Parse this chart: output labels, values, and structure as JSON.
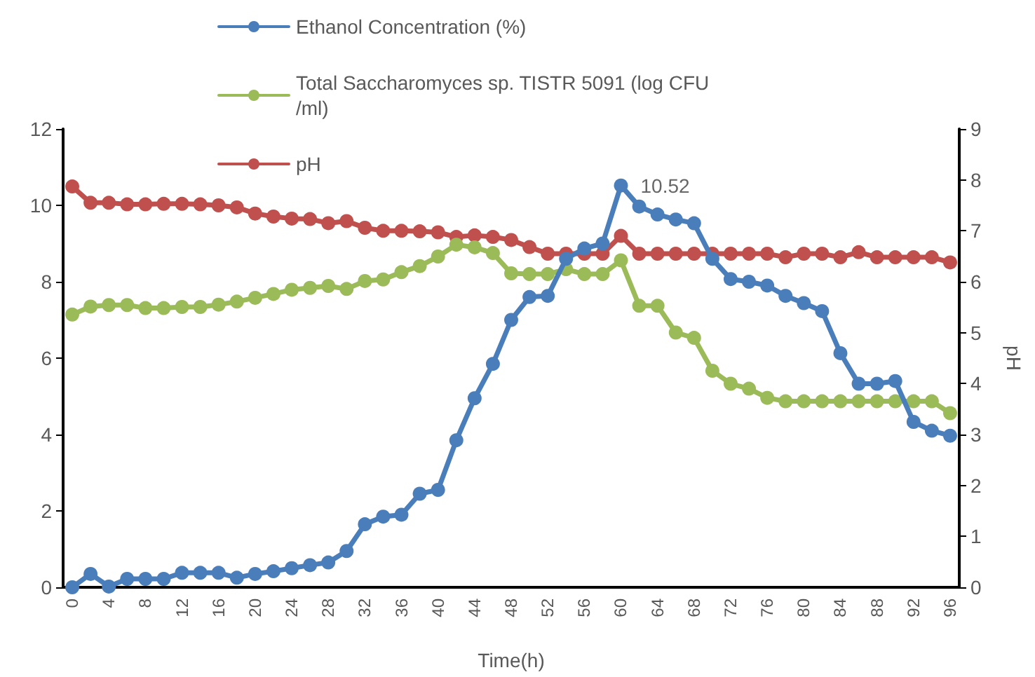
{
  "chart_data": {
    "type": "line",
    "xlabel": "Time(h)",
    "y2label": "pH",
    "categories": [
      "0",
      null,
      "4",
      null,
      "8",
      null,
      "12",
      null,
      "16",
      null,
      "20",
      null,
      "24",
      null,
      "28",
      null,
      "32",
      null,
      "36",
      null,
      "40",
      null,
      "44",
      null,
      "48",
      null,
      "52",
      null,
      "56",
      null,
      "60",
      null,
      "64",
      null,
      "68",
      null,
      "72",
      null,
      "76",
      null,
      "80",
      null,
      "84",
      null,
      "88",
      null,
      "92",
      null,
      "96"
    ],
    "series": [
      {
        "name": "Ethanol Concentration (%)",
        "color": "#4a7ebb",
        "values": [
          0,
          0.35,
          0.02,
          0.22,
          0.22,
          0.22,
          0.38,
          0.38,
          0.38,
          0.25,
          0.35,
          0.42,
          0.5,
          0.58,
          0.65,
          0.95,
          1.65,
          1.85,
          1.9,
          2.45,
          2.55,
          3.85,
          4.95,
          5.85,
          7.0,
          7.6,
          7.63,
          8.6,
          8.87,
          9.0,
          10.52,
          9.97,
          9.76,
          9.63,
          9.53,
          8.6,
          8.07,
          8.0,
          7.9,
          7.63,
          7.44,
          7.23,
          6.13,
          5.33,
          5.33,
          5.4,
          4.33,
          4.1,
          3.97
        ]
      },
      {
        "name": "Total Saccharomyces sp. TISTR 5091 (log CFU/ml)",
        "color": "#9bbb59",
        "values": [
          7.14,
          7.35,
          7.39,
          7.39,
          7.31,
          7.31,
          7.34,
          7.34,
          7.4,
          7.48,
          7.58,
          7.68,
          7.79,
          7.84,
          7.89,
          7.81,
          8.02,
          8.06,
          8.25,
          8.41,
          8.66,
          8.97,
          8.9,
          8.75,
          8.22,
          8.2,
          8.2,
          8.33,
          8.2,
          8.2,
          8.56,
          7.37,
          7.37,
          6.67,
          6.53,
          5.67,
          5.33,
          5.2,
          4.96,
          4.87,
          4.87,
          4.87,
          4.87,
          4.87,
          4.87,
          4.87,
          4.87,
          4.87,
          4.56
        ]
      },
      {
        "name": "pH",
        "color": "#c0504d",
        "axis": "y2",
        "values": [
          7.87,
          7.55,
          7.55,
          7.52,
          7.52,
          7.53,
          7.53,
          7.52,
          7.5,
          7.46,
          7.34,
          7.28,
          7.24,
          7.23,
          7.15,
          7.19,
          7.06,
          7.0,
          7.0,
          6.99,
          6.97,
          6.88,
          6.91,
          6.88,
          6.82,
          6.68,
          6.55,
          6.55,
          6.55,
          6.55,
          6.9,
          6.55,
          6.55,
          6.55,
          6.55,
          6.55,
          6.55,
          6.55,
          6.55,
          6.48,
          6.55,
          6.55,
          6.48,
          6.58,
          6.48,
          6.48,
          6.48,
          6.48,
          6.38
        ]
      }
    ],
    "ylim": [
      0,
      12
    ],
    "yticks": [
      0,
      2,
      4,
      6,
      8,
      10,
      12
    ],
    "y2lim": [
      0,
      9
    ],
    "y2ticks": [
      0,
      1,
      2,
      3,
      4,
      5,
      6,
      7,
      8,
      9
    ],
    "annotations": [
      {
        "text": "10.52",
        "x": "60",
        "y": 10.52
      }
    ],
    "grid": false,
    "legend": "top",
    "marker": "circle",
    "line_style": "solid"
  }
}
